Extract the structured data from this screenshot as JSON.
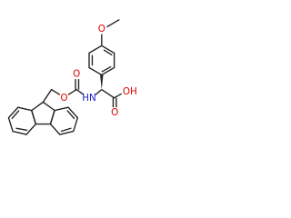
{
  "atoms": {
    "methoxy_o": "O",
    "ester_o": "O",
    "carbonyl_o": "O",
    "amine": "HN",
    "acid_oh": "OH",
    "acid_o": "O"
  }
}
